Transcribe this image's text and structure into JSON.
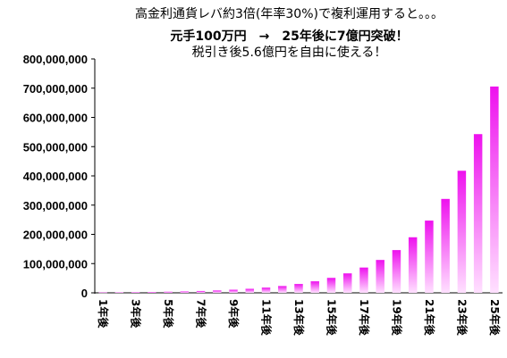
{
  "title": {
    "line1": "高金利通貨レバ約3倍(年率30%)で複利運用すると。。。",
    "line2": "元手100万円　→　25年後に7億円突破！",
    "line3": "税引き後5.6億円を自由に使える！"
  },
  "colors": {
    "bar_top": "#ee11ee",
    "bar_bottom": "#ffe0ff"
  },
  "chart_data": {
    "type": "bar",
    "title": "高金利通貨レバ約3倍(年率30%)で複利運用すると。。。",
    "categories": [
      "1年後",
      "2年後",
      "3年後",
      "4年後",
      "5年後",
      "6年後",
      "7年後",
      "8年後",
      "9年後",
      "10年後",
      "11年後",
      "12年後",
      "13年後",
      "14年後",
      "15年後",
      "16年後",
      "17年後",
      "18年後",
      "19年後",
      "20年後",
      "21年後",
      "22年後",
      "23年後",
      "24年後",
      "25年後"
    ],
    "category_labels_shown": [
      "1年後",
      "",
      "3年後",
      "",
      "5年後",
      "",
      "7年後",
      "",
      "9年後",
      "",
      "11年後",
      "",
      "13年後",
      "",
      "15年後",
      "",
      "17年後",
      "",
      "19年後",
      "",
      "21年後",
      "",
      "23年後",
      "",
      "25年後"
    ],
    "values": [
      1300000,
      1690000,
      2197000,
      2856100,
      3712930,
      4826809,
      6274852,
      8157307,
      10604499,
      13785849,
      17921604,
      23298085,
      30287511,
      39373764,
      51185893,
      66541661,
      86504159,
      112455407,
      146192029,
      190049638,
      247064529,
      321183888,
      417539054,
      542800770,
      705640001
    ],
    "ylim": [
      0,
      800000000
    ],
    "y_ticks": [
      "0",
      "100,000,000",
      "200,000,000",
      "300,000,000",
      "400,000,000",
      "500,000,000",
      "600,000,000",
      "700,000,000",
      "800,000,000"
    ],
    "grid": false,
    "legend": "none"
  }
}
